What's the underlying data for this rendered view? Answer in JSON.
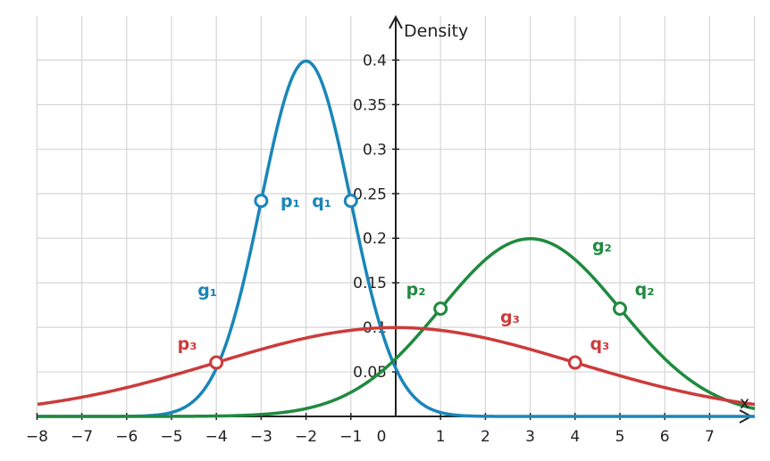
{
  "chart_data": {
    "type": "line",
    "xlabel": "x",
    "ylabel": "Density",
    "xlim": [
      -8,
      8
    ],
    "ylim": [
      0,
      0.44
    ],
    "grid": true,
    "x_ticks": [
      "−8",
      "−7",
      "−6",
      "−5",
      "−4",
      "−3",
      "−2",
      "−1",
      "0",
      "1",
      "2",
      "3",
      "4",
      "5",
      "6",
      "7"
    ],
    "y_ticks": [
      "0.05",
      "0.1",
      "0.15",
      "0.2",
      "0.25",
      "0.3",
      "0.35",
      "0.4"
    ],
    "series": [
      {
        "name": "g₁",
        "color": "#1a86b8",
        "distribution": "normal",
        "mean": -2,
        "sd": 1,
        "label_at": [
          -4.2,
          0.135
        ],
        "points": [
          {
            "name": "p₁",
            "x": -3,
            "y": 0.242,
            "label_at": [
              -2.35,
              0.242
            ]
          },
          {
            "name": "q₁",
            "x": -1,
            "y": 0.242,
            "label_at": [
              -1.65,
              0.242
            ]
          }
        ]
      },
      {
        "name": "g₂",
        "color": "#1f8a3e",
        "distribution": "normal",
        "mean": 3,
        "sd": 2,
        "label_at": [
          4.6,
          0.185
        ],
        "points": [
          {
            "name": "p₂",
            "x": 1,
            "y": 0.121,
            "label_at": [
              0.45,
              0.143
            ]
          },
          {
            "name": "q₂",
            "x": 5,
            "y": 0.121,
            "label_at": [
              5.55,
              0.143
            ]
          }
        ]
      },
      {
        "name": "g₃",
        "color": "#cc3b3b",
        "distribution": "normal",
        "mean": 0,
        "sd": 4,
        "label_at": [
          2.55,
          0.105
        ],
        "points": [
          {
            "name": "p₃",
            "x": -4,
            "y": 0.0605,
            "label_at": [
              -4.65,
              0.082
            ]
          },
          {
            "name": "q₃",
            "x": 4,
            "y": 0.0605,
            "label_at": [
              4.55,
              0.082
            ]
          }
        ]
      }
    ]
  }
}
